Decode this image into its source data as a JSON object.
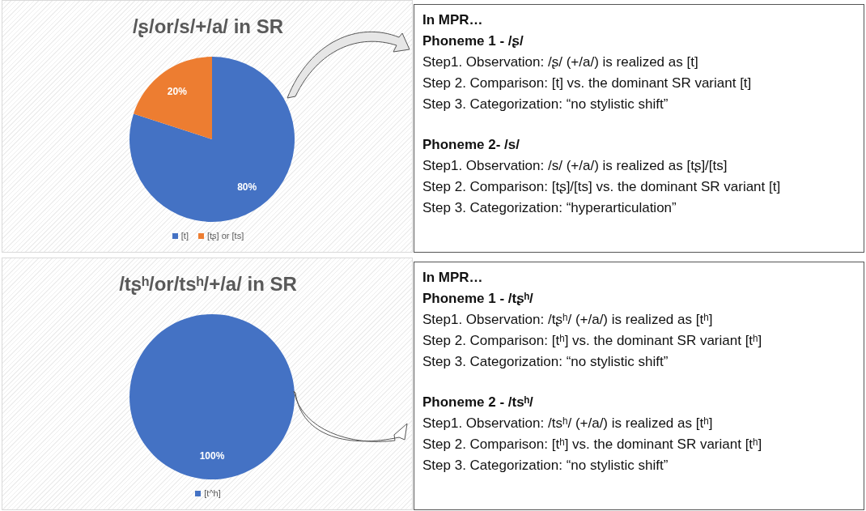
{
  "chart_data": [
    {
      "type": "pie",
      "title": "/ʂ/or/s/+/a/ in SR",
      "categories": [
        "[t]",
        "[tʂ] or [ts]"
      ],
      "values": [
        80,
        20
      ],
      "colors": [
        "#4472c4",
        "#ed7d31"
      ],
      "value_labels": [
        "80%",
        "20%"
      ],
      "legend": "bottom"
    },
    {
      "type": "other",
      "title": "In MPR…",
      "annotations": [
        "Phoneme 1 - /ʂ/",
        "Step1. Observation: /ʂ/ (+/a/) is realized as [t]",
        "Step 2. Comparison: [t] vs. the dominant SR variant [t]",
        "Step 3. Categorization: “no stylistic shift”",
        "Phoneme 2- /s/",
        "Step1. Observation: /s/ (+/a/) is realized as  [tʂ]/[ts]",
        "Step 2. Comparison: [tʂ]/[ts] vs. the dominant SR variant [t]",
        "Step 3. Categorization: “hyperarticulation”"
      ]
    },
    {
      "type": "pie",
      "title": "/tʂʰ/or/tsʰ/+/a/ in SR",
      "categories": [
        "[t^h]"
      ],
      "values": [
        100
      ],
      "colors": [
        "#4472c4"
      ],
      "value_labels": [
        "100%"
      ],
      "legend": "bottom"
    },
    {
      "type": "other",
      "title": "In MPR…",
      "annotations": [
        "Phoneme 1 - /tʂʰ/",
        "Step1. Observation: /tʂʰ/ (+/a/) is realized as [tʰ]",
        "Step 2. Comparison: [tʰ] vs. the dominant SR variant [tʰ]",
        "Step 3. Categorization: “no stylistic shift”",
        "Phoneme 2 - /tsʰ/",
        "Step1. Observation: /tsʰ/ (+/a/) is realized as [tʰ]",
        "Step 2. Comparison: [tʰ] vs. the dominant SR variant [tʰ]",
        "Step 3. Categorization: “no stylistic shift”"
      ]
    }
  ]
}
